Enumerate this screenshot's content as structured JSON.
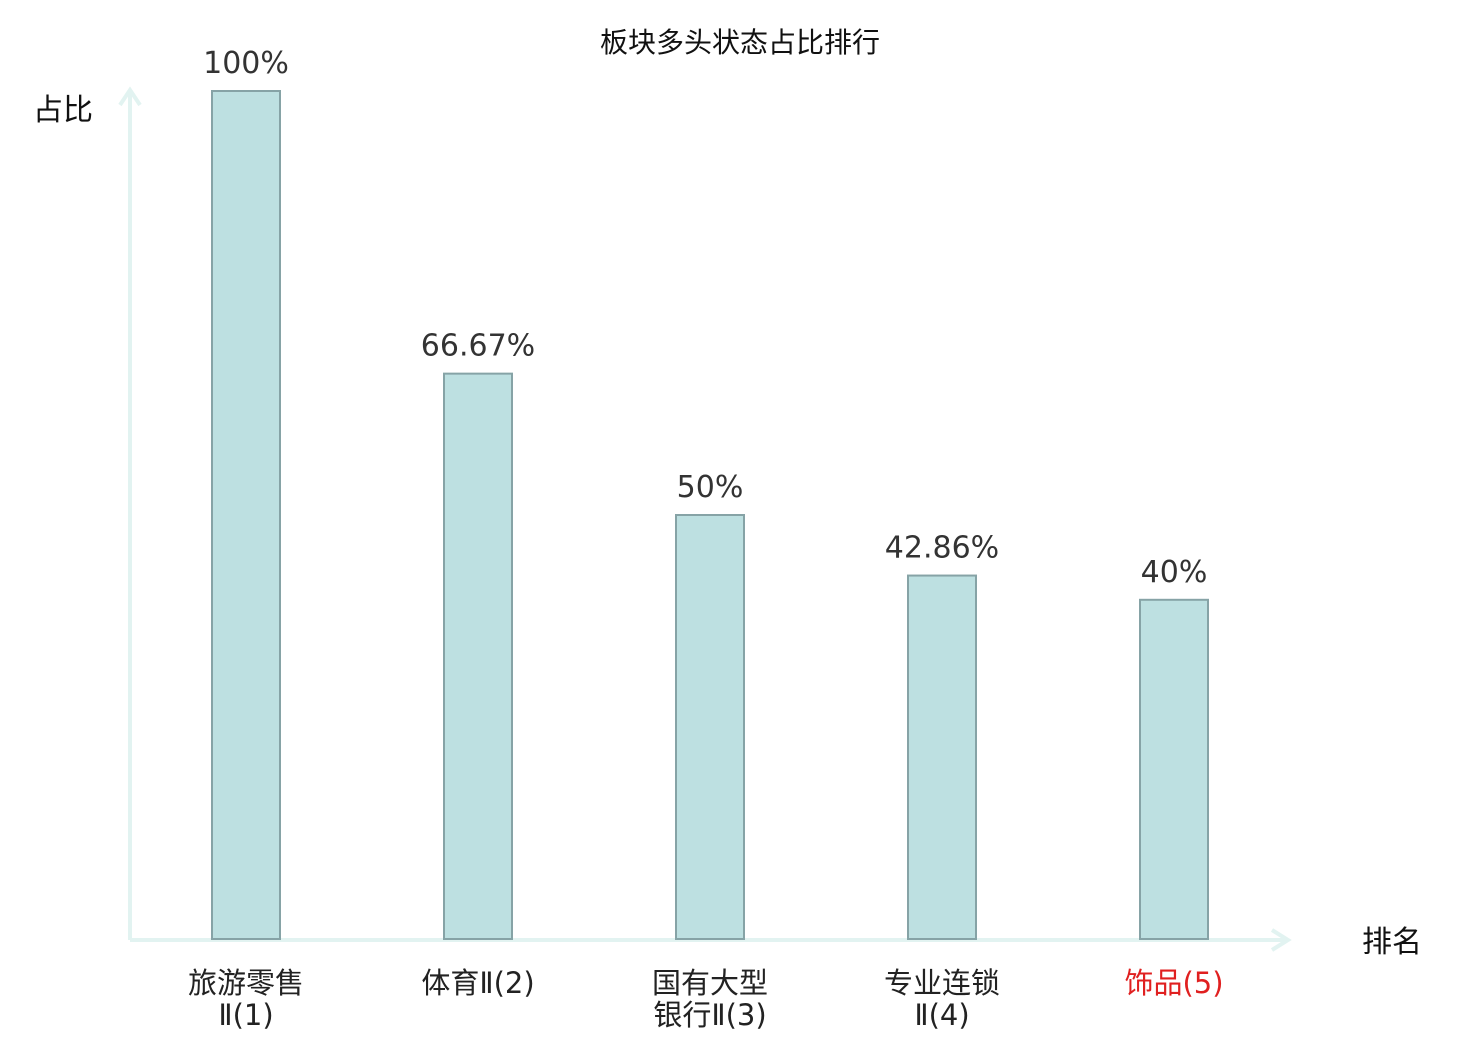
{
  "chart_data": {
    "type": "bar",
    "title": "板块多头状态占比排行",
    "ylabel": "占比",
    "xlabel": "排名",
    "categories": [
      {
        "lines": [
          "旅游零售",
          "Ⅱ(1)"
        ],
        "highlight": false
      },
      {
        "lines": [
          "体育Ⅱ(2)"
        ],
        "highlight": false
      },
      {
        "lines": [
          "国有大型",
          "银行Ⅱ(3)"
        ],
        "highlight": false
      },
      {
        "lines": [
          "专业连锁",
          "Ⅱ(4)"
        ],
        "highlight": false
      },
      {
        "lines": [
          "饰品(5)"
        ],
        "highlight": true
      }
    ],
    "values": [
      100,
      66.67,
      50,
      42.86,
      40
    ],
    "value_labels": [
      "100%",
      "66.67%",
      "50%",
      "42.86%",
      "40%"
    ],
    "ylim": [
      0,
      100
    ],
    "grid": false,
    "colors": {
      "bar_fill": "#bde0e1",
      "bar_stroke": "#86a3a6",
      "axis": "#e2f3f1",
      "highlight_text": "#e02020",
      "text": "#222222"
    }
  }
}
